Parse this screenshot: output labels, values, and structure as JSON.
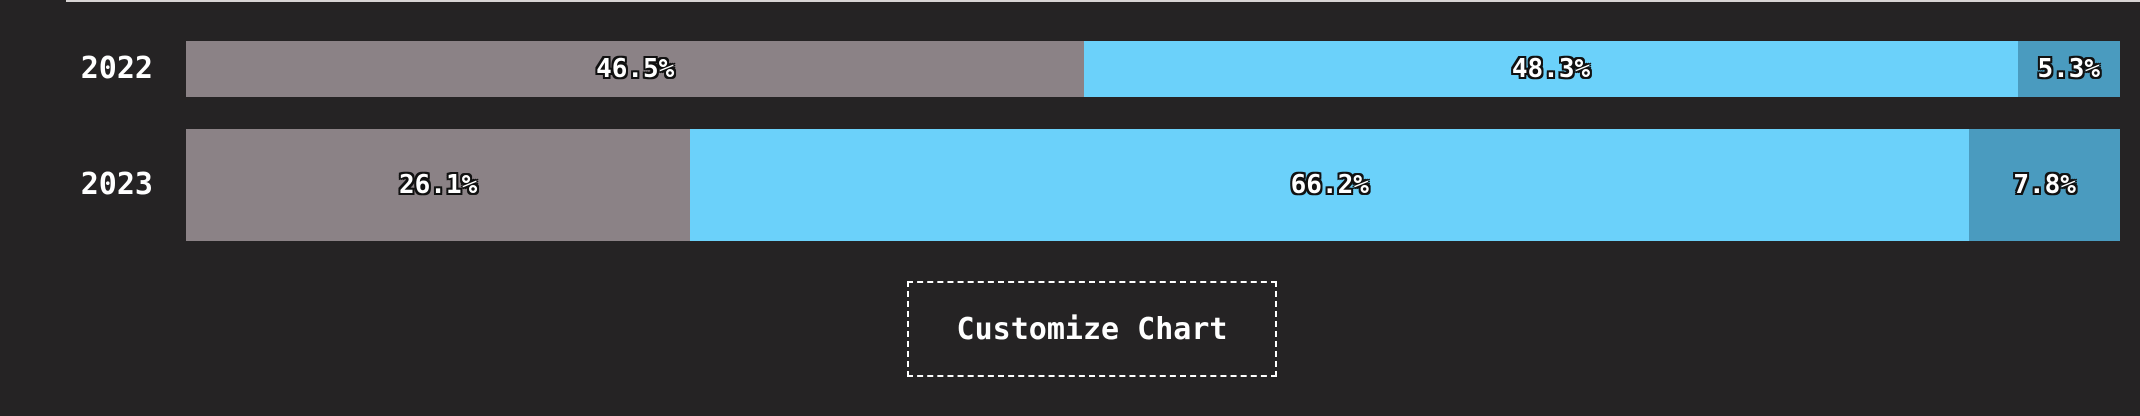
{
  "chart_data": {
    "type": "bar",
    "orientation": "horizontal",
    "stacked": true,
    "normalized": true,
    "categories": [
      "2022",
      "2023"
    ],
    "series": [
      {
        "values": [
          46.5,
          26.1
        ],
        "labels": [
          "46.5%",
          "26.1%"
        ],
        "color": "#8b8286"
      },
      {
        "values": [
          48.3,
          66.2
        ],
        "labels": [
          "48.3%",
          "66.2%"
        ],
        "color": "#6bd1fa"
      },
      {
        "values": [
          5.3,
          7.8
        ],
        "labels": [
          "5.3%",
          "7.8%"
        ],
        "color": "#4a9bbf"
      }
    ],
    "title": "",
    "xlabel": "",
    "ylabel": "",
    "xlim": [
      0,
      100
    ],
    "grid": false,
    "legend": "none"
  },
  "controls": {
    "customize_label": "Customize Chart"
  }
}
